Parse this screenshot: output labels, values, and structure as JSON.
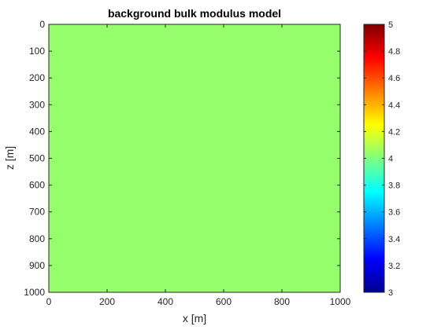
{
  "chart_data": {
    "type": "heatmap",
    "title": "background bulk modulus model",
    "xlabel": "x [m]",
    "ylabel": "z [m]",
    "xlim": [
      0,
      1000
    ],
    "ylim": [
      0,
      1000
    ],
    "y_reversed": true,
    "xticks": [
      "0",
      "200",
      "400",
      "600",
      "800",
      "1000"
    ],
    "yticks": [
      "0",
      "100",
      "200",
      "300",
      "400",
      "500",
      "600",
      "700",
      "800",
      "900",
      "1000"
    ],
    "value": 4,
    "field_color": "#94ff6b",
    "colormap": "jet",
    "colorbar": {
      "placement": "right",
      "range": [
        3,
        5
      ],
      "ticks": [
        "3",
        "3.2",
        "3.4",
        "3.6",
        "3.8",
        "4",
        "4.2",
        "4.4",
        "4.6",
        "4.8",
        "5"
      ]
    },
    "grid": false
  }
}
